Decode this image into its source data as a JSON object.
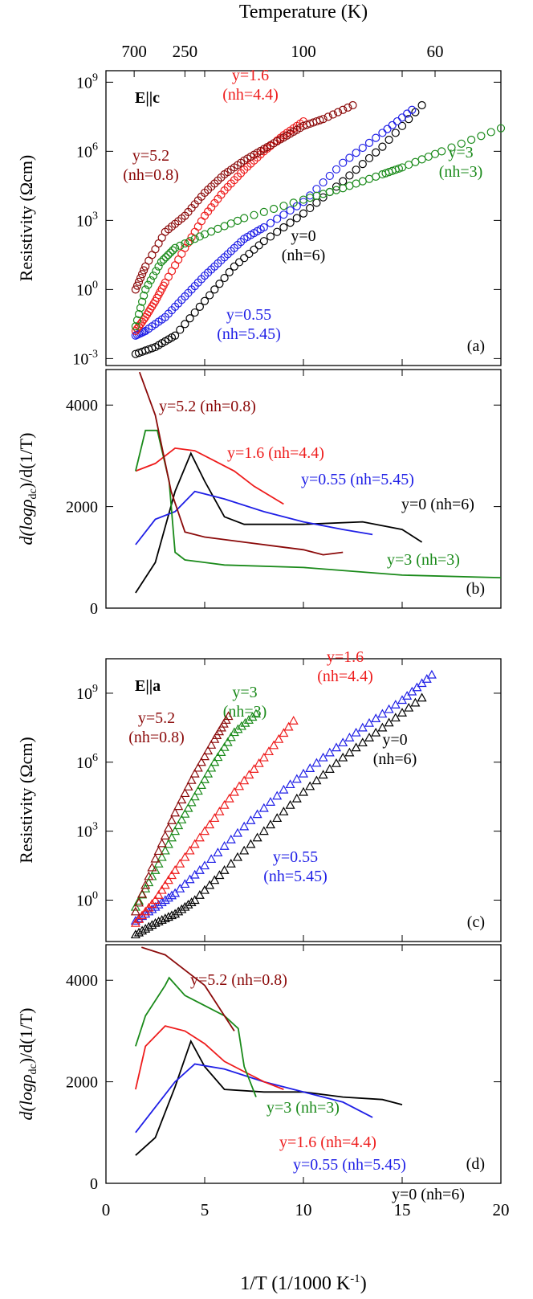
{
  "figure": {
    "top_axis_label": "Temperature (K)",
    "top_axis_ticks": [
      "700",
      "250",
      "100",
      "60"
    ],
    "top_axis_ticks_T": [
      700,
      250,
      100,
      60
    ],
    "x_label": "1/T (1/1000 K",
    "x_label_sup": "-1",
    "x_label_close": ")",
    "x_ticks": [
      0,
      5,
      10,
      15,
      20
    ],
    "xlim": [
      0,
      20
    ]
  },
  "colors": {
    "y0": "#000000",
    "y055": "#1f1fe6",
    "y16": "#ee1c1c",
    "y3": "#1a8a1a",
    "y52": "#8b0a0a"
  },
  "chart_data": [
    {
      "id": "a",
      "type": "scatter",
      "panel_label": "(a)",
      "field_label": "E||c",
      "ylabel": "Resistivity (Ωcm)",
      "yscale": "log",
      "ylim_exp": [
        -3.3,
        9.5
      ],
      "y_ticks_exp": [
        -3,
        0,
        3,
        6,
        9
      ],
      "marker": "circle",
      "series": [
        {
          "key": "y0",
          "name": "y=0 (nh=6)",
          "label_main": "y=0",
          "label_sub": "(nh=6)",
          "x": [
            1.5,
            2.5,
            3.5,
            5,
            6.5,
            8,
            10,
            12,
            14,
            16
          ],
          "log_y": [
            -2.8,
            -2.5,
            -2.0,
            -0.5,
            1.0,
            2.1,
            3.3,
            4.7,
            6.2,
            8.0
          ]
        },
        {
          "key": "y055",
          "name": "y=0.55 (nh=5.45)",
          "label_main": "y=0.55",
          "label_sub": "(nh=5.45)",
          "x": [
            1.5,
            2,
            3,
            4,
            5,
            6,
            7,
            8,
            10,
            12,
            14,
            15.5
          ],
          "log_y": [
            -2.0,
            -1.8,
            -1.2,
            -0.3,
            0.6,
            1.4,
            2.2,
            2.7,
            3.8,
            5.5,
            6.8,
            7.8
          ]
        },
        {
          "key": "y16",
          "name": "y=1.6 (nh=4.4)",
          "label_main": "y=1.6",
          "label_sub": "(nh=4.4)",
          "x": [
            1.5,
            2,
            2.5,
            3,
            4,
            5,
            6,
            7,
            8,
            9,
            10
          ],
          "log_y": [
            -1.8,
            -1.2,
            -0.5,
            0.3,
            1.8,
            3.2,
            4.3,
            5.2,
            6.0,
            6.7,
            7.3
          ]
        },
        {
          "key": "y3",
          "name": "y=3 (nh=3)",
          "label_main": "y=3",
          "label_sub": "(nh=3)",
          "x": [
            1.5,
            2,
            2.8,
            3.5,
            5,
            7,
            10,
            12,
            14,
            15,
            17,
            20
          ],
          "log_y": [
            -1.6,
            0.0,
            1.2,
            1.8,
            2.4,
            3.1,
            3.9,
            4.4,
            5.0,
            5.3,
            6.0,
            7.0
          ]
        },
        {
          "key": "y52",
          "name": "y=5.2 (nh=0.8)",
          "label_main": "y=5.2",
          "label_sub": "(nh=0.8)",
          "x": [
            1.5,
            2,
            3,
            4,
            5,
            6,
            7,
            8,
            9,
            10,
            11,
            12.5
          ],
          "log_y": [
            0.0,
            1.0,
            2.5,
            3.2,
            4.2,
            5.0,
            5.6,
            6.1,
            6.6,
            7.1,
            7.4,
            8.0
          ]
        }
      ]
    },
    {
      "id": "b",
      "type": "line",
      "panel_label": "(b)",
      "ylabel_main": "d(logρ",
      "ylabel_sub": "dc",
      "ylabel_close": ")/d(1/T)",
      "ylim": [
        0,
        4700
      ],
      "y_ticks": [
        0,
        2000,
        4000
      ],
      "series": [
        {
          "key": "y0",
          "name": "y=0 (nh=6)",
          "label_main": "y=0",
          "label_sub": "(nh=6)",
          "x": [
            1.5,
            2.5,
            3.5,
            4.3,
            5,
            6,
            7,
            10,
            13,
            15,
            16
          ],
          "y": [
            300,
            900,
            2300,
            3050,
            2500,
            1800,
            1650,
            1650,
            1700,
            1550,
            1300
          ]
        },
        {
          "key": "y055",
          "name": "y=0.55 (nh=5.45)",
          "label_main": "y=0.55",
          "label_sub": "(nh=5.45)",
          "x": [
            1.5,
            2.5,
            3.5,
            4.5,
            6,
            8,
            10,
            12,
            13.5
          ],
          "y": [
            1250,
            1750,
            1900,
            2300,
            2150,
            1900,
            1700,
            1550,
            1450
          ]
        },
        {
          "key": "y16",
          "name": "y=1.6 (nh=4.4)",
          "label_main": "y=1.6",
          "label_sub": "(nh=4.4)",
          "x": [
            1.5,
            2.5,
            3.5,
            4.5,
            5.5,
            6.5,
            7.5,
            9
          ],
          "y": [
            2700,
            2850,
            3150,
            3100,
            2900,
            2700,
            2400,
            2050
          ]
        },
        {
          "key": "y3",
          "name": "y=3 (nh=3)",
          "label_main": "y=3",
          "label_sub": "(nh=3)",
          "x": [
            1.5,
            2,
            2.6,
            3.2,
            3.5,
            4,
            6,
            10,
            15,
            20
          ],
          "y": [
            2700,
            3500,
            3500,
            2500,
            1100,
            950,
            850,
            800,
            650,
            600
          ]
        },
        {
          "key": "y52",
          "name": "y=5.2 (nh=0.8)",
          "label_main": "y=5.2",
          "label_sub": "(nh=0.8)",
          "x": [
            1.7,
            2.5,
            3.3,
            4,
            5,
            7,
            9,
            10,
            11,
            12
          ],
          "y": [
            4650,
            3800,
            2300,
            1500,
            1400,
            1300,
            1200,
            1150,
            1050,
            1100
          ]
        }
      ]
    },
    {
      "id": "c",
      "type": "scatter",
      "panel_label": "(c)",
      "field_label": "E||a",
      "ylabel": "Resistivity (Ωcm)",
      "yscale": "log",
      "ylim_exp": [
        -1.8,
        10.5
      ],
      "y_ticks_exp": [
        0,
        3,
        6,
        9
      ],
      "marker": "triangle",
      "series": [
        {
          "key": "y0",
          "name": "y=0 (nh=6)",
          "label_main": "y=0",
          "label_sub": "(nh=6)",
          "x": [
            1.5,
            2.5,
            3.5,
            4.5,
            6,
            8,
            10,
            12,
            14,
            16
          ],
          "log_y": [
            -1.5,
            -1.0,
            -0.6,
            0.0,
            1.3,
            3.0,
            4.7,
            6.2,
            7.5,
            8.8
          ]
        },
        {
          "key": "y055",
          "name": "y=0.55 (nh=5.45)",
          "label_main": "y=0.55",
          "label_sub": "(nh=5.45)",
          "x": [
            1.5,
            2.5,
            3.5,
            5,
            7,
            9,
            11,
            13,
            15,
            16.5
          ],
          "log_y": [
            -0.9,
            -0.3,
            0.3,
            1.5,
            3.2,
            4.8,
            6.2,
            7.5,
            8.7,
            9.8
          ]
        },
        {
          "key": "y16",
          "name": "y=1.6 (nh=4.4)",
          "label_main": "y=1.6",
          "label_sub": "(nh=4.4)",
          "x": [
            1.5,
            2.5,
            3.5,
            5,
            6.5,
            8,
            9.5
          ],
          "log_y": [
            -1.0,
            0.0,
            1.3,
            3.0,
            4.7,
            6.2,
            7.8
          ]
        },
        {
          "key": "y3",
          "name": "y=3 (nh=3)",
          "label_main": "y=3",
          "label_sub": "(nh=3)",
          "x": [
            1.5,
            2.5,
            3.5,
            4.5,
            5.5,
            6.5,
            7.6
          ],
          "log_y": [
            -0.3,
            1.3,
            3.0,
            4.5,
            6.0,
            7.3,
            8.1
          ]
        },
        {
          "key": "y52",
          "name": "y=5.2 (nh=0.8)",
          "label_main": "y=5.2",
          "label_sub": "(nh=0.8)",
          "x": [
            1.5,
            2.5,
            3.5,
            4.5,
            5.5,
            6.2
          ],
          "log_y": [
            -0.5,
            1.8,
            3.8,
            5.5,
            7.0,
            8.0
          ]
        }
      ]
    },
    {
      "id": "d",
      "type": "line",
      "panel_label": "(d)",
      "ylabel_main": "d(logρ",
      "ylabel_sub": "dc",
      "ylabel_close": ")/d(1/T)",
      "ylim": [
        0,
        4700
      ],
      "y_ticks": [
        0,
        2000,
        4000
      ],
      "series": [
        {
          "key": "y0",
          "name": "y=0 (nh=6)",
          "label_main": "y=0",
          "label_sub": "(nh=6)",
          "x": [
            1.5,
            2.5,
            3.5,
            4.3,
            5,
            6,
            8,
            10,
            12,
            14,
            15
          ],
          "y": [
            550,
            900,
            1900,
            2800,
            2300,
            1850,
            1800,
            1800,
            1700,
            1650,
            1550
          ]
        },
        {
          "key": "y055",
          "name": "y=0.55 (nh=5.45)",
          "label_main": "y=0.55",
          "label_sub": "(nh=5.45)",
          "x": [
            1.5,
            2.5,
            3.5,
            4.5,
            6,
            8,
            10,
            12,
            13.5
          ],
          "y": [
            1000,
            1500,
            2000,
            2350,
            2250,
            2000,
            1800,
            1600,
            1300
          ]
        },
        {
          "key": "y16",
          "name": "y=1.6 (nh=4.4)",
          "label_main": "y=1.6",
          "label_sub": "(nh=4.4)",
          "x": [
            1.5,
            2,
            3,
            4,
            5,
            6,
            7,
            8,
            9
          ],
          "y": [
            1850,
            2700,
            3100,
            3000,
            2750,
            2400,
            2200,
            2000,
            1850
          ]
        },
        {
          "key": "y3",
          "name": "y=3 (nh=3)",
          "label_main": "y=3",
          "label_sub": "(nh=3)",
          "x": [
            1.5,
            2,
            3,
            3.2,
            4,
            5,
            6,
            6.7,
            7,
            7.6
          ],
          "y": [
            2700,
            3300,
            3900,
            4050,
            3700,
            3500,
            3300,
            3050,
            2300,
            1700
          ]
        },
        {
          "key": "y52",
          "name": "y=5.2 (nh=0.8)",
          "label_main": "y=5.2",
          "label_sub": "(nh=0.8)",
          "x": [
            1.8,
            3,
            4,
            5,
            5.5,
            6,
            6.5
          ],
          "y": [
            4650,
            4500,
            4200,
            3900,
            3600,
            3300,
            3000
          ]
        }
      ]
    }
  ]
}
